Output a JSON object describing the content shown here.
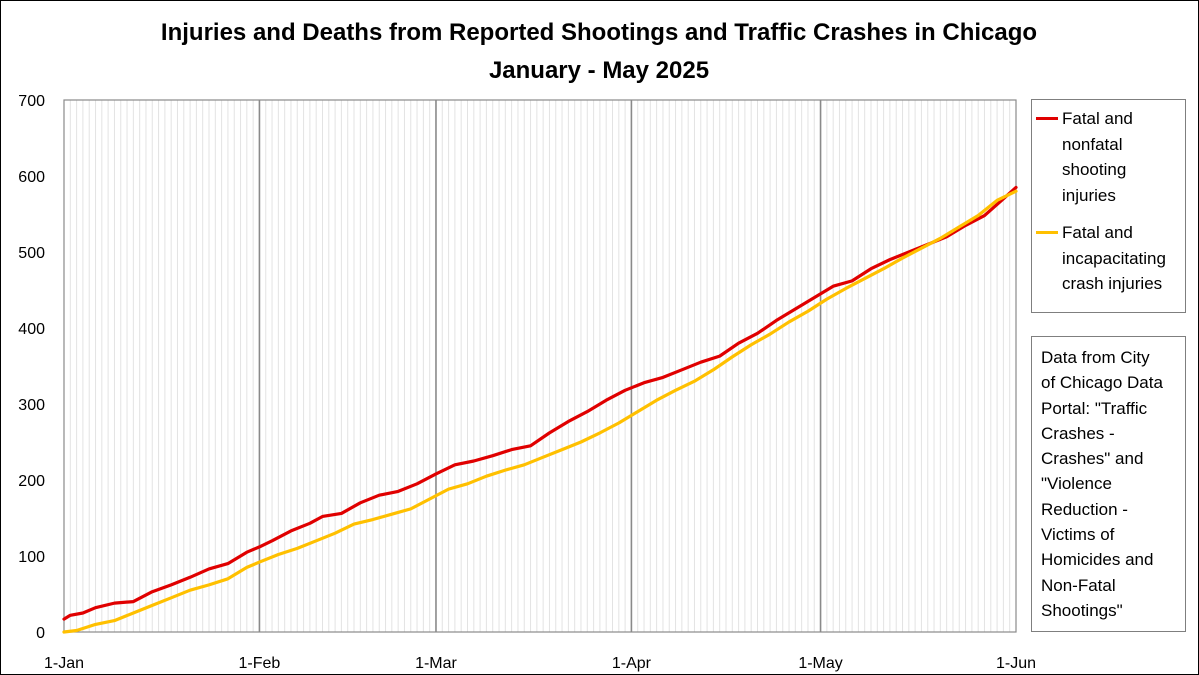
{
  "chart_data": {
    "type": "line",
    "title": "Injuries and Deaths from Reported Shootings and Traffic Crashes in Chicago",
    "subtitle": "January - May 2025",
    "xlabel": "",
    "ylabel": "",
    "x_ticks": [
      "1-Jan",
      "1-Feb",
      "1-Mar",
      "1-Apr",
      "1-May",
      "1-Jun"
    ],
    "x_range": [
      "2025-01-01",
      "2025-06-01"
    ],
    "y_ticks": [
      0,
      100,
      200,
      300,
      400,
      500,
      600,
      700
    ],
    "ylim": [
      0,
      700
    ],
    "grid": "vertical gridlines, daily minor and monthly major",
    "legend_position": "right",
    "series": [
      {
        "name": "Fatal and nonfatal shooting injuries",
        "color": "#E00000",
        "points": [
          [
            "2025-01-01",
            17
          ],
          [
            "2025-01-02",
            22
          ],
          [
            "2025-01-04",
            25
          ],
          [
            "2025-01-06",
            32
          ],
          [
            "2025-01-09",
            38
          ],
          [
            "2025-01-12",
            40
          ],
          [
            "2025-01-15",
            53
          ],
          [
            "2025-01-18",
            62
          ],
          [
            "2025-01-21",
            72
          ],
          [
            "2025-01-24",
            83
          ],
          [
            "2025-01-27",
            90
          ],
          [
            "2025-01-30",
            105
          ],
          [
            "2025-02-01",
            112
          ],
          [
            "2025-02-03",
            120
          ],
          [
            "2025-02-06",
            133
          ],
          [
            "2025-02-09",
            143
          ],
          [
            "2025-02-11",
            152
          ],
          [
            "2025-02-14",
            156
          ],
          [
            "2025-02-17",
            170
          ],
          [
            "2025-02-20",
            180
          ],
          [
            "2025-02-23",
            185
          ],
          [
            "2025-02-26",
            195
          ],
          [
            "2025-03-01",
            208
          ],
          [
            "2025-03-04",
            220
          ],
          [
            "2025-03-07",
            225
          ],
          [
            "2025-03-10",
            232
          ],
          [
            "2025-03-13",
            240
          ],
          [
            "2025-03-16",
            245
          ],
          [
            "2025-03-19",
            262
          ],
          [
            "2025-03-22",
            277
          ],
          [
            "2025-03-25",
            290
          ],
          [
            "2025-03-28",
            305
          ],
          [
            "2025-03-31",
            318
          ],
          [
            "2025-04-03",
            328
          ],
          [
            "2025-04-06",
            335
          ],
          [
            "2025-04-09",
            345
          ],
          [
            "2025-04-12",
            355
          ],
          [
            "2025-04-15",
            363
          ],
          [
            "2025-04-18",
            380
          ],
          [
            "2025-04-21",
            393
          ],
          [
            "2025-04-24",
            410
          ],
          [
            "2025-04-27",
            425
          ],
          [
            "2025-04-30",
            440
          ],
          [
            "2025-05-03",
            455
          ],
          [
            "2025-05-06",
            462
          ],
          [
            "2025-05-09",
            478
          ],
          [
            "2025-05-12",
            490
          ],
          [
            "2025-05-15",
            500
          ],
          [
            "2025-05-18",
            510
          ],
          [
            "2025-05-21",
            520
          ],
          [
            "2025-05-24",
            535
          ],
          [
            "2025-05-27",
            548
          ],
          [
            "2025-05-30",
            570
          ],
          [
            "2025-06-01",
            585
          ]
        ]
      },
      {
        "name": "Fatal and incapacitating crash injuries",
        "color": "#FFC000",
        "points": [
          [
            "2025-01-01",
            0
          ],
          [
            "2025-01-03",
            2
          ],
          [
            "2025-01-06",
            10
          ],
          [
            "2025-01-09",
            15
          ],
          [
            "2025-01-12",
            25
          ],
          [
            "2025-01-15",
            35
          ],
          [
            "2025-01-18",
            45
          ],
          [
            "2025-01-21",
            55
          ],
          [
            "2025-01-24",
            62
          ],
          [
            "2025-01-27",
            70
          ],
          [
            "2025-01-30",
            85
          ],
          [
            "2025-02-01",
            92
          ],
          [
            "2025-02-04",
            102
          ],
          [
            "2025-02-07",
            110
          ],
          [
            "2025-02-10",
            120
          ],
          [
            "2025-02-13",
            130
          ],
          [
            "2025-02-16",
            142
          ],
          [
            "2025-02-19",
            148
          ],
          [
            "2025-02-22",
            155
          ],
          [
            "2025-02-25",
            162
          ],
          [
            "2025-02-28",
            175
          ],
          [
            "2025-03-03",
            188
          ],
          [
            "2025-03-06",
            195
          ],
          [
            "2025-03-09",
            205
          ],
          [
            "2025-03-12",
            213
          ],
          [
            "2025-03-15",
            220
          ],
          [
            "2025-03-18",
            230
          ],
          [
            "2025-03-21",
            240
          ],
          [
            "2025-03-24",
            250
          ],
          [
            "2025-03-27",
            262
          ],
          [
            "2025-03-30",
            275
          ],
          [
            "2025-04-02",
            290
          ],
          [
            "2025-04-05",
            305
          ],
          [
            "2025-04-08",
            318
          ],
          [
            "2025-04-11",
            330
          ],
          [
            "2025-04-14",
            345
          ],
          [
            "2025-04-17",
            362
          ],
          [
            "2025-04-20",
            378
          ],
          [
            "2025-04-23",
            392
          ],
          [
            "2025-04-26",
            408
          ],
          [
            "2025-04-29",
            422
          ],
          [
            "2025-05-02",
            438
          ],
          [
            "2025-05-05",
            452
          ],
          [
            "2025-05-08",
            465
          ],
          [
            "2025-05-11",
            478
          ],
          [
            "2025-05-14",
            492
          ],
          [
            "2025-05-17",
            505
          ],
          [
            "2025-05-20",
            518
          ],
          [
            "2025-05-23",
            533
          ],
          [
            "2025-05-26",
            548
          ],
          [
            "2025-05-29",
            568
          ],
          [
            "2025-06-01",
            580
          ]
        ]
      }
    ],
    "note": "Data from City of Chicago Data Portal: \"Traffic Crashes - Crashes\" and \"Violence Reduction - Victims of Homicides and Non-Fatal Shootings\""
  },
  "legend": {
    "items": [
      {
        "lines": [
          "Fatal and",
          "nonfatal",
          "shooting",
          "injuries"
        ],
        "color": "#E00000"
      },
      {
        "lines": [
          "Fatal and",
          "incapacitating",
          "crash injuries"
        ],
        "color": "#FFC000"
      }
    ]
  },
  "note_lines": [
    "Data from City",
    "of Chicago Data",
    "Portal: \"Traffic",
    "Crashes -",
    "Crashes\" and",
    "\"Violence",
    "Reduction -",
    "Victims of",
    "Homicides and",
    "Non-Fatal",
    "Shootings\""
  ]
}
